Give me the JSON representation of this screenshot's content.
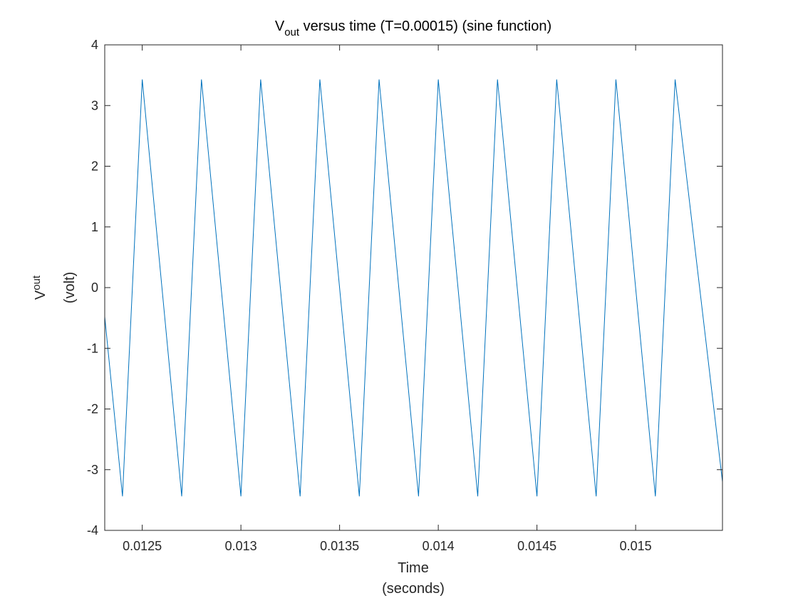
{
  "chart_data": {
    "type": "line",
    "title": {
      "main": "V",
      "subscript": "out",
      "rest": " versus time (T=0.00015) (sine function)"
    },
    "xlabel": {
      "line1": "Time",
      "line2": "(seconds)"
    },
    "ylabel": {
      "main": "V",
      "subscript": "out",
      "line2": "(volt)"
    },
    "xlim": [
      0.01231,
      0.01544
    ],
    "ylim": [
      -4,
      4
    ],
    "x_ticks": [
      0.0125,
      0.013,
      0.0135,
      0.014,
      0.0145,
      0.015
    ],
    "x_tick_labels": [
      "0.0125",
      "0.013",
      "0.0135",
      "0.014",
      "0.0145",
      "0.015"
    ],
    "y_ticks": [
      -4,
      -3,
      -2,
      -1,
      0,
      1,
      2,
      3,
      4
    ],
    "y_tick_labels": [
      "-4",
      "-3",
      "-2",
      "-1",
      "0",
      "1",
      "2",
      "3",
      "4"
    ],
    "grid": false,
    "series": [
      {
        "color": "#0072bd",
        "x": [
          0.01231,
          0.0124,
          0.0125,
          0.0127,
          0.0128,
          0.013,
          0.0131,
          0.0133,
          0.0134,
          0.0136,
          0.0137,
          0.0139,
          0.014,
          0.0142,
          0.0143,
          0.0145,
          0.0146,
          0.0148,
          0.0149,
          0.0151,
          0.0152,
          0.01544
        ],
        "y": [
          -0.48,
          -3.44,
          3.43,
          -3.44,
          3.43,
          -3.44,
          3.43,
          -3.44,
          3.43,
          -3.44,
          3.43,
          -3.44,
          3.43,
          -3.44,
          3.43,
          -3.44,
          3.43,
          -3.44,
          3.43,
          -3.44,
          3.43,
          -3.2
        ]
      }
    ]
  }
}
